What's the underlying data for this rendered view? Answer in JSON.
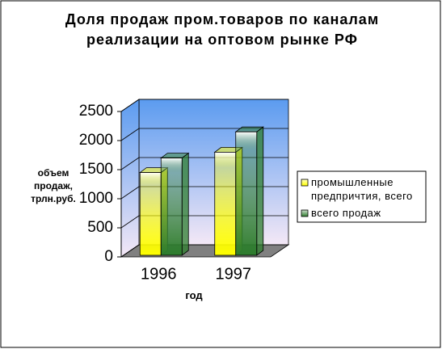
{
  "chart_data": {
    "type": "bar3d",
    "title": "Доля продаж пром.товаров по каналам реализации на оптовом рынке РФ",
    "y_label": "объем продаж, трлн.руб.",
    "x_label": "год",
    "categories": [
      "1996",
      "1997"
    ],
    "series": [
      {
        "name": "промышленные предпричтия, всего",
        "color": "#ffff00",
        "values": [
          1450,
          1800
        ]
      },
      {
        "name": "всего продаж",
        "color": "#2e7d2e",
        "values": [
          1700,
          2150
        ]
      }
    ],
    "ylim": [
      0,
      2500
    ],
    "yticks": [
      0,
      500,
      1000,
      1500,
      2000,
      2500
    ],
    "grid": true,
    "legend": "right"
  }
}
